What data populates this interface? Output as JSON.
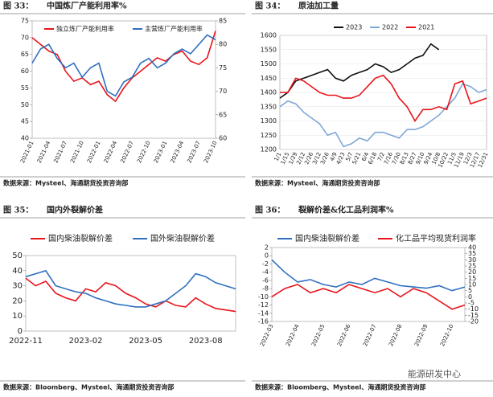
{
  "chart_data": [
    {
      "type": "line",
      "label": "图 33：",
      "title": "中国炼厂产能利用率%",
      "source": "数据来源：Mysteel、海通期货投资咨询部",
      "categories": [
        "2021-01",
        null,
        "2021-04",
        null,
        "2021-07",
        null,
        "2021-10",
        null,
        "2022-01",
        null,
        "2022-04",
        null,
        "2022-07",
        null,
        "2022-10",
        null,
        "2023-01",
        null,
        "2023-04",
        null,
        "2023-07",
        null,
        "2023-10"
      ],
      "series": [
        {
          "name": "独立炼厂产能利用率",
          "color": "#e8141b",
          "values": [
            70,
            68,
            66,
            65,
            60,
            57,
            58,
            56,
            57,
            53,
            51,
            55,
            58,
            60,
            62,
            64,
            63,
            65,
            66,
            63,
            62,
            64,
            72
          ]
        },
        {
          "name": "主营炼厂产能利用率",
          "color": "#2f6fc0",
          "axis": "y2",
          "values": [
            76,
            79,
            80,
            77,
            75,
            76,
            73,
            75,
            76,
            70,
            69,
            72,
            73,
            76,
            77,
            75,
            76,
            78,
            79,
            78,
            80,
            82,
            81
          ]
        }
      ],
      "ylim": [
        40,
        75
      ],
      "yticks": [
        40,
        45,
        50,
        55,
        60,
        65,
        70,
        75
      ],
      "y2lim": [
        60,
        85
      ],
      "y2ticks": [
        60,
        65,
        70,
        75,
        80,
        85
      ],
      "grid": false
    },
    {
      "type": "line",
      "label": "图 34：",
      "title": "原油加工量",
      "source": "数据来源：Mysteel、海通期货投资咨询部",
      "categories": [
        "1/1",
        "1/15",
        "1/29",
        "2/12",
        "2/26",
        "3/12",
        "3/26",
        "4/9",
        "4/23",
        "5/7",
        "5/21",
        "6/4",
        "6/18",
        "7/2",
        "7/16",
        "7/30",
        "8/13",
        "8/27",
        "9/10",
        "9/24",
        "10/8",
        "10/22",
        "11/5",
        "11/19",
        "12/3",
        "12/17",
        "12/31"
      ],
      "series": [
        {
          "name": "2023",
          "color": "#111111",
          "values": [
            1380,
            1400,
            1440,
            1450,
            1460,
            1470,
            1480,
            1450,
            1440,
            1460,
            1470,
            1480,
            1500,
            1490,
            1470,
            1480,
            1500,
            1520,
            1530,
            1570,
            1550,
            null,
            null,
            null,
            null,
            null,
            null
          ]
        },
        {
          "name": "2022",
          "color": "#7fa8d6",
          "values": [
            1350,
            1370,
            1360,
            1330,
            1310,
            1290,
            1250,
            1260,
            1210,
            1220,
            1240,
            1230,
            1260,
            1260,
            1250,
            1240,
            1270,
            1270,
            1280,
            1300,
            1320,
            1350,
            1380,
            1430,
            1420,
            1400,
            1410
          ]
        },
        {
          "name": "2021",
          "color": "#e8141b",
          "values": [
            1400,
            1400,
            1450,
            1440,
            1420,
            1400,
            1390,
            1390,
            1380,
            1380,
            1390,
            1420,
            1450,
            1460,
            1430,
            1380,
            1350,
            1300,
            1340,
            1340,
            1350,
            1340,
            1430,
            1440,
            1360,
            1370,
            1380
          ]
        }
      ],
      "ylim": [
        1200,
        1600
      ],
      "yticks": [
        1200,
        1250,
        1300,
        1350,
        1400,
        1450,
        1500,
        1550,
        1600
      ],
      "grid": true
    },
    {
      "type": "line",
      "label": "图 35：",
      "title": "国内外裂解价差",
      "source": "数据来源：Bloomberg、Mysteel、海通期货投资咨询部",
      "categories": [
        "2022-11",
        null,
        null,
        null,
        null,
        null,
        "2023-02",
        null,
        null,
        null,
        null,
        null,
        "2023-05",
        null,
        null,
        null,
        null,
        null,
        "2023-08",
        null,
        null,
        null
      ],
      "series": [
        {
          "name": "国内柴油裂解价差",
          "color": "#e8141b",
          "values": [
            35,
            30,
            33,
            25,
            22,
            20,
            28,
            26,
            32,
            30,
            25,
            22,
            18,
            16,
            20,
            17,
            16,
            22,
            18,
            15,
            14,
            13
          ]
        },
        {
          "name": "国外柴油裂解价差",
          "color": "#2f6fc0",
          "values": [
            36,
            38,
            40,
            30,
            28,
            26,
            25,
            22,
            20,
            18,
            17,
            16,
            16,
            18,
            20,
            25,
            30,
            38,
            36,
            32,
            30,
            28
          ]
        }
      ],
      "ylim": [
        0,
        50
      ],
      "yticks": [
        0,
        10,
        20,
        30,
        40,
        50
      ],
      "grid": false
    },
    {
      "type": "line",
      "label": "图 36：",
      "title": "裂解价差&化工品利润率%",
      "source": "数据来源：Bloomberg、Mysteel、海通期货投资咨询部",
      "categories": [
        "2022-03",
        null,
        "2022-04",
        null,
        "2022-05",
        null,
        "2022-06",
        null,
        "2022-07",
        null,
        "2022-08",
        null,
        "2022-09",
        null,
        "2022-10",
        null
      ],
      "series": [
        {
          "name": "国内柴油裂解价差",
          "color": "#2f6fc0",
          "axis": "y2",
          "values": [
            30,
            20,
            12,
            14,
            10,
            8,
            12,
            10,
            15,
            12,
            9,
            8,
            7,
            9,
            5,
            8
          ]
        },
        {
          "name": "化工品平均现货利润率",
          "color": "#e8141b",
          "values": [
            -10,
            -8,
            -7,
            -9,
            -8,
            -9,
            -7,
            -8,
            -9,
            -8,
            -10,
            -8,
            -9,
            -11,
            -13,
            -12
          ]
        }
      ],
      "ylim": [
        -16,
        2
      ],
      "yticks": [
        -16,
        -14,
        -12,
        -10,
        -8,
        -6,
        -4,
        -2,
        0,
        2
      ],
      "y2lim": [
        -20,
        40
      ],
      "y2ticks": [
        -20,
        -15,
        -10,
        -5,
        0,
        5,
        10,
        15,
        20,
        25,
        30,
        35,
        40
      ],
      "grid": false
    }
  ],
  "watermark": "能源研发中心"
}
